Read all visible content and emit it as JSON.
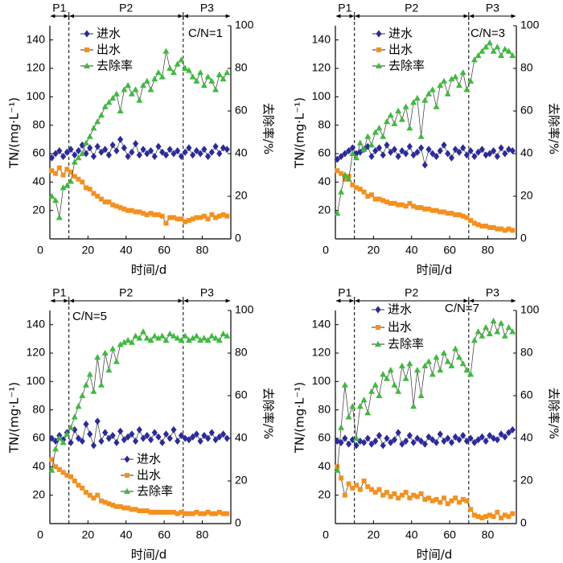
{
  "chart_data": [
    {
      "type": "line",
      "condition_label": "C/N=1",
      "xlabel": "时间/d",
      "ylabel": "TN/(mg·L⁻¹)",
      "y2label": "去除率/%",
      "xlim": [
        0,
        95
      ],
      "ylim": [
        0,
        150
      ],
      "y2lim": [
        0,
        100
      ],
      "x_ticks": [
        0,
        20,
        40,
        60,
        80
      ],
      "y_ticks": [
        20,
        40,
        60,
        80,
        100,
        120,
        140
      ],
      "y2_ticks": [
        0,
        20,
        40,
        60,
        80,
        100
      ],
      "grid": false,
      "legend_position": "top-left",
      "phases": [
        {
          "label": "P1",
          "start": 0,
          "end": 10
        },
        {
          "label": "P2",
          "start": 10,
          "end": 70
        },
        {
          "label": "P3",
          "start": 70,
          "end": 95
        }
      ],
      "x": [
        1,
        3,
        5,
        7,
        9,
        11,
        13,
        15,
        17,
        19,
        21,
        23,
        25,
        27,
        29,
        31,
        33,
        35,
        37,
        39,
        41,
        43,
        45,
        47,
        49,
        51,
        53,
        55,
        57,
        59,
        61,
        63,
        65,
        67,
        69,
        71,
        73,
        75,
        77,
        79,
        81,
        83,
        85,
        87,
        89,
        91,
        93
      ],
      "series": [
        {
          "name": "进水",
          "axis": "left",
          "marker": "diamond",
          "color": "#2b2a9c",
          "values": [
            57,
            60,
            62,
            58,
            61,
            63,
            59,
            62,
            66,
            60,
            64,
            58,
            65,
            61,
            63,
            59,
            66,
            62,
            70,
            64,
            58,
            61,
            67,
            59,
            63,
            60,
            62,
            58,
            65,
            61,
            59,
            63,
            60,
            62,
            58,
            61,
            64,
            59,
            62,
            60,
            63,
            58,
            61,
            65,
            60,
            64,
            63
          ]
        },
        {
          "name": "出水",
          "axis": "left",
          "marker": "square",
          "color": "#f5901e",
          "values": [
            48,
            46,
            50,
            45,
            49,
            47,
            44,
            42,
            40,
            36,
            35,
            32,
            30,
            28,
            26,
            26,
            24,
            23,
            22,
            21,
            20,
            20,
            19,
            19,
            18,
            17,
            18,
            17,
            17,
            16,
            11,
            15,
            15,
            14,
            14,
            12,
            13,
            14,
            15,
            15,
            16,
            14,
            17,
            15,
            16,
            17,
            16
          ]
        },
        {
          "name": "去除率",
          "axis": "right",
          "marker": "triangle",
          "color": "#3dbb3d",
          "values": [
            20,
            18,
            10,
            24,
            25,
            27,
            36,
            38,
            40,
            45,
            48,
            52,
            55,
            58,
            62,
            64,
            66,
            68,
            60,
            70,
            72,
            68,
            70,
            65,
            72,
            74,
            70,
            75,
            78,
            76,
            88,
            80,
            78,
            82,
            84,
            80,
            79,
            76,
            74,
            78,
            72,
            76,
            74,
            70,
            77,
            75,
            78
          ]
        }
      ]
    },
    {
      "type": "line",
      "condition_label": "C/N=3",
      "xlabel": "时间/d",
      "ylabel": "TN/(mg·L⁻¹)",
      "y2label": "去除率/%",
      "xlim": [
        0,
        95
      ],
      "ylim": [
        0,
        150
      ],
      "y2lim": [
        0,
        100
      ],
      "x_ticks": [
        0,
        20,
        40,
        60,
        80
      ],
      "y_ticks": [
        20,
        40,
        60,
        80,
        100,
        120,
        140
      ],
      "y2_ticks": [
        0,
        20,
        40,
        60,
        80,
        100
      ],
      "grid": false,
      "legend_position": "top-left",
      "phases": [
        {
          "label": "P1",
          "start": 0,
          "end": 10
        },
        {
          "label": "P2",
          "start": 10,
          "end": 70
        },
        {
          "label": "P3",
          "start": 70,
          "end": 95
        }
      ],
      "x": [
        1,
        3,
        5,
        7,
        9,
        11,
        13,
        15,
        17,
        19,
        21,
        23,
        25,
        27,
        29,
        31,
        33,
        35,
        37,
        39,
        41,
        43,
        45,
        47,
        49,
        51,
        53,
        55,
        57,
        59,
        61,
        63,
        65,
        67,
        69,
        71,
        73,
        75,
        77,
        79,
        81,
        83,
        85,
        87,
        89,
        91,
        93
      ],
      "series": [
        {
          "name": "进水",
          "axis": "left",
          "marker": "diamond",
          "color": "#2b2a9c",
          "values": [
            56,
            58,
            60,
            62,
            64,
            60,
            61,
            63,
            65,
            58,
            62,
            64,
            59,
            66,
            61,
            63,
            58,
            62,
            60,
            65,
            59,
            61,
            64,
            52,
            63,
            60,
            58,
            62,
            66,
            60,
            57,
            63,
            61,
            64,
            59,
            62,
            58,
            61,
            63,
            59,
            60,
            62,
            58,
            64,
            60,
            63,
            62
          ]
        },
        {
          "name": "出水",
          "axis": "left",
          "marker": "square",
          "color": "#f5901e",
          "values": [
            48,
            46,
            42,
            44,
            38,
            36,
            35,
            33,
            30,
            31,
            28,
            28,
            27,
            26,
            25,
            25,
            24,
            24,
            23,
            25,
            23,
            22,
            22,
            21,
            21,
            20,
            20,
            19,
            19,
            18,
            18,
            17,
            17,
            16,
            15,
            13,
            11,
            10,
            9,
            9,
            8,
            8,
            7,
            7,
            6,
            7,
            6
          ]
        },
        {
          "name": "去除率",
          "axis": "right",
          "marker": "triangle",
          "color": "#3dbb3d",
          "values": [
            12,
            22,
            30,
            28,
            40,
            38,
            45,
            42,
            48,
            44,
            50,
            52,
            48,
            55,
            58,
            54,
            60,
            56,
            62,
            52,
            64,
            66,
            48,
            65,
            68,
            70,
            62,
            72,
            74,
            68,
            75,
            76,
            72,
            78,
            70,
            74,
            84,
            86,
            88,
            90,
            92,
            88,
            90,
            86,
            89,
            88,
            86
          ]
        }
      ]
    },
    {
      "type": "line",
      "condition_label": "C/N=5",
      "xlabel": "时间/d",
      "ylabel": "TN/(mg·L⁻¹)",
      "y2label": "去除率/%",
      "xlim": [
        0,
        95
      ],
      "ylim": [
        0,
        150
      ],
      "y2lim": [
        0,
        100
      ],
      "x_ticks": [
        0,
        20,
        40,
        60,
        80
      ],
      "y_ticks": [
        20,
        40,
        60,
        80,
        100,
        120,
        140
      ],
      "y2_ticks": [
        0,
        20,
        40,
        60,
        80,
        100
      ],
      "grid": false,
      "legend_position": "center",
      "phases": [
        {
          "label": "P1",
          "start": 0,
          "end": 10
        },
        {
          "label": "P2",
          "start": 10,
          "end": 70
        },
        {
          "label": "P3",
          "start": 70,
          "end": 95
        }
      ],
      "x": [
        1,
        3,
        5,
        7,
        9,
        11,
        13,
        15,
        17,
        19,
        21,
        23,
        25,
        27,
        29,
        31,
        33,
        35,
        37,
        39,
        41,
        43,
        45,
        47,
        49,
        51,
        53,
        55,
        57,
        59,
        61,
        63,
        65,
        67,
        69,
        71,
        73,
        75,
        77,
        79,
        81,
        83,
        85,
        87,
        89,
        91,
        93
      ],
      "series": [
        {
          "name": "进水",
          "axis": "left",
          "marker": "diamond",
          "color": "#2b2a9c",
          "values": [
            60,
            58,
            62,
            59,
            64,
            57,
            66,
            60,
            58,
            70,
            63,
            55,
            72,
            58,
            64,
            60,
            62,
            57,
            65,
            59,
            61,
            63,
            58,
            66,
            60,
            62,
            59,
            64,
            61,
            57,
            63,
            60,
            66,
            58,
            62,
            60,
            59,
            61,
            63,
            58,
            62,
            60,
            64,
            59,
            61,
            63,
            60
          ]
        },
        {
          "name": "出水",
          "axis": "left",
          "marker": "square",
          "color": "#f5901e",
          "values": [
            45,
            40,
            38,
            36,
            34,
            33,
            30,
            27,
            25,
            22,
            20,
            18,
            20,
            16,
            15,
            14,
            13,
            12,
            12,
            11,
            11,
            10,
            10,
            9,
            9,
            9,
            8,
            8,
            8,
            8,
            8,
            8,
            8,
            7,
            8,
            7,
            7,
            7,
            8,
            7,
            7,
            8,
            7,
            7,
            8,
            7,
            7
          ]
        },
        {
          "name": "去除率",
          "axis": "right",
          "marker": "triangle",
          "color": "#3dbb3d",
          "values": [
            25,
            35,
            40,
            38,
            42,
            45,
            50,
            55,
            60,
            65,
            70,
            62,
            78,
            65,
            80,
            72,
            82,
            76,
            84,
            85,
            86,
            85,
            88,
            87,
            90,
            87,
            86,
            88,
            87,
            88,
            86,
            89,
            88,
            87,
            86,
            88,
            86,
            87,
            88,
            86,
            87,
            86,
            88,
            87,
            86,
            89,
            88
          ]
        }
      ]
    },
    {
      "type": "line",
      "condition_label": "C/N=7",
      "xlabel": "时间/d",
      "ylabel": "TN/(mg·L⁻¹)",
      "y2label": "去除率/%",
      "xlim": [
        0,
        95
      ],
      "ylim": [
        0,
        150
      ],
      "y2lim": [
        0,
        100
      ],
      "x_ticks": [
        0,
        20,
        40,
        60,
        80
      ],
      "y_ticks": [
        20,
        40,
        60,
        80,
        100,
        120,
        140
      ],
      "y2_ticks": [
        0,
        20,
        40,
        60,
        80,
        100
      ],
      "grid": false,
      "legend_position": "top-left",
      "phases": [
        {
          "label": "P1",
          "start": 0,
          "end": 10
        },
        {
          "label": "P2",
          "start": 10,
          "end": 70
        },
        {
          "label": "P3",
          "start": 70,
          "end": 95
        }
      ],
      "x": [
        1,
        3,
        5,
        7,
        9,
        11,
        13,
        15,
        17,
        19,
        21,
        23,
        25,
        27,
        29,
        31,
        33,
        35,
        37,
        39,
        41,
        43,
        45,
        47,
        49,
        51,
        53,
        55,
        57,
        59,
        61,
        63,
        65,
        67,
        69,
        71,
        73,
        75,
        77,
        79,
        81,
        83,
        85,
        87,
        89,
        91,
        93
      ],
      "series": [
        {
          "name": "进水",
          "axis": "left",
          "marker": "diamond",
          "color": "#2b2a9c",
          "values": [
            58,
            57,
            60,
            56,
            59,
            55,
            58,
            57,
            60,
            56,
            58,
            62,
            55,
            60,
            57,
            59,
            64,
            56,
            58,
            62,
            57,
            60,
            58,
            56,
            61,
            59,
            57,
            63,
            58,
            60,
            57,
            61,
            59,
            62,
            58,
            60,
            57,
            59,
            61,
            58,
            62,
            60,
            59,
            63,
            61,
            64,
            66
          ]
        },
        {
          "name": "出水",
          "axis": "left",
          "marker": "square",
          "color": "#f5901e",
          "values": [
            40,
            32,
            20,
            28,
            25,
            27,
            24,
            30,
            26,
            24,
            22,
            24,
            20,
            22,
            19,
            21,
            18,
            20,
            22,
            18,
            20,
            19,
            21,
            17,
            18,
            16,
            17,
            15,
            18,
            14,
            16,
            18,
            15,
            17,
            16,
            10,
            6,
            5,
            4,
            5,
            6,
            5,
            8,
            4,
            6,
            5,
            7
          ]
        },
        {
          "name": "去除率",
          "axis": "right",
          "marker": "triangle",
          "color": "#3dbb3d",
          "values": [
            25,
            45,
            65,
            50,
            55,
            40,
            55,
            58,
            52,
            62,
            65,
            60,
            70,
            68,
            72,
            65,
            62,
            74,
            68,
            75,
            55,
            72,
            60,
            74,
            76,
            70,
            78,
            72,
            80,
            76,
            74,
            82,
            78,
            75,
            72,
            70,
            86,
            90,
            88,
            92,
            89,
            95,
            90,
            94,
            88,
            92,
            90
          ]
        }
      ]
    }
  ]
}
